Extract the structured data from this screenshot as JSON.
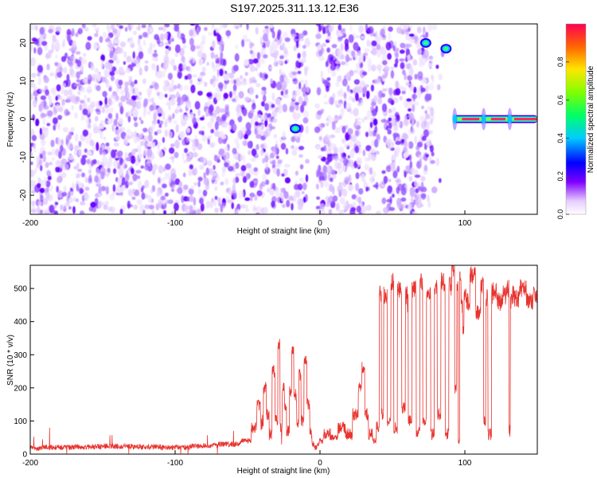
{
  "title": "S197.2025.311.13.12.E36",
  "chart_data": [
    {
      "type": "heatmap",
      "xlabel": "Height of straight line (km)",
      "ylabel": "Frequency (Hz)",
      "xlim": [
        -200,
        150
      ],
      "ylim": [
        -25,
        25
      ],
      "xticks": [
        -200,
        -100,
        0,
        100
      ],
      "xtick_labels": [
        "-200",
        "-100",
        "0",
        "100"
      ],
      "yticks": [
        -20,
        -10,
        0,
        10,
        20
      ],
      "ytick_labels": [
        "-20",
        "-10",
        "0",
        "10",
        "20"
      ],
      "colorbar": {
        "label": "Normalized spectral amplitude",
        "range": [
          0,
          1
        ],
        "ticks": [
          0.0,
          0.2,
          0.4,
          0.6,
          0.8
        ],
        "tick_labels": [
          "0.0",
          "0.2",
          "0.4",
          "0.6",
          "0.8"
        ]
      },
      "features": [
        {
          "name": "broadband noise speckle",
          "x_range": [
            -200,
            85
          ],
          "y_range": [
            -25,
            25
          ],
          "amplitude": 0.1
        },
        {
          "name": "blip",
          "x": -17,
          "y": -2.5,
          "amplitude": 0.45
        },
        {
          "name": "blip",
          "x": 73,
          "y": 20,
          "amplitude": 0.45
        },
        {
          "name": "blip",
          "x": 87,
          "y": 18.5,
          "amplitude": 0.45
        },
        {
          "name": "carrier line",
          "x_range": [
            92,
            150
          ],
          "y": 0,
          "amplitude": 0.95
        }
      ]
    },
    {
      "type": "line",
      "xlabel": "Height of straight line (km)",
      "ylabel": "SNR (10 * v/v)",
      "xlim": [
        -200,
        150
      ],
      "ylim": [
        0,
        570
      ],
      "xticks": [
        -200,
        -100,
        0,
        100
      ],
      "xtick_labels": [
        "-200",
        "-100",
        "0",
        "100"
      ],
      "yticks": [
        0,
        100,
        200,
        300,
        400,
        500
      ],
      "ytick_labels": [
        "0",
        "100",
        "200",
        "300",
        "400",
        "500"
      ],
      "color": "#e8332e",
      "series": [
        {
          "name": "SNR",
          "x": [
            -200,
            -180,
            -160,
            -140,
            -120,
            -100,
            -80,
            -60,
            -50,
            -45,
            -42,
            -40,
            -38,
            -36,
            -34,
            -32,
            -30,
            -28,
            -27,
            -25,
            -24,
            -22,
            -20,
            -19,
            -17,
            -15,
            -14,
            -12,
            -10,
            -8,
            -6,
            -5,
            -3,
            -1,
            0,
            5,
            10,
            15,
            20,
            25,
            28,
            30,
            32,
            35,
            38,
            40,
            42,
            43,
            45,
            48,
            50,
            52,
            55,
            58,
            60,
            62,
            65,
            68,
            70,
            72,
            75,
            78,
            80,
            82,
            85,
            88,
            90,
            92,
            94,
            95,
            96,
            97,
            98,
            99,
            100,
            102,
            105,
            110,
            112,
            114,
            115,
            117,
            120,
            125,
            128,
            130,
            131,
            132,
            134,
            135,
            140,
            145,
            150
          ],
          "y": [
            18,
            20,
            22,
            24,
            22,
            20,
            25,
            30,
            40,
            80,
            150,
            90,
            200,
            120,
            60,
            250,
            100,
            330,
            80,
            200,
            150,
            70,
            190,
            310,
            180,
            90,
            240,
            100,
            280,
            150,
            60,
            30,
            20,
            30,
            40,
            60,
            50,
            80,
            60,
            120,
            200,
            260,
            120,
            60,
            40,
            80,
            480,
            120,
            480,
            100,
            520,
            80,
            500,
            140,
            480,
            100,
            500,
            70,
            520,
            100,
            480,
            60,
            500,
            120,
            520,
            60,
            510,
            560,
            200,
            520,
            40,
            550,
            450,
            380,
            480,
            460,
            540,
            430,
            510,
            100,
            470,
            60,
            490,
            460,
            480,
            500,
            70,
            460,
            480,
            470,
            500,
            460,
            480
          ]
        }
      ]
    }
  ]
}
